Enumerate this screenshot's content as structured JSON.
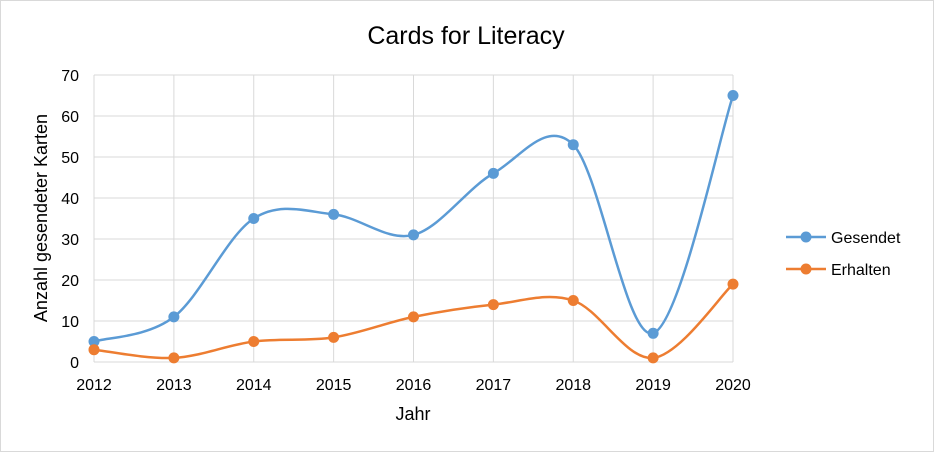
{
  "chart_data": {
    "type": "line",
    "title": "Cards for Literacy",
    "xlabel": "Jahr",
    "ylabel": "Anzahl gesendeter Karten",
    "categories": [
      "2012",
      "2013",
      "2014",
      "2015",
      "2016",
      "2017",
      "2018",
      "2019",
      "2020"
    ],
    "yticks": [
      "0",
      "10",
      "20",
      "30",
      "40",
      "50",
      "60",
      "70"
    ],
    "ylim": [
      0,
      70
    ],
    "grid": true,
    "smooth": true,
    "legend_position": "right",
    "series": [
      {
        "name": "Gesendet",
        "values": [
          5,
          11,
          35,
          36,
          31,
          46,
          53,
          7,
          65
        ],
        "color": "#5B9BD5"
      },
      {
        "name": "Erhalten",
        "values": [
          3,
          1,
          5,
          6,
          11,
          14,
          15,
          1,
          19
        ],
        "color": "#ED7D31"
      }
    ]
  }
}
